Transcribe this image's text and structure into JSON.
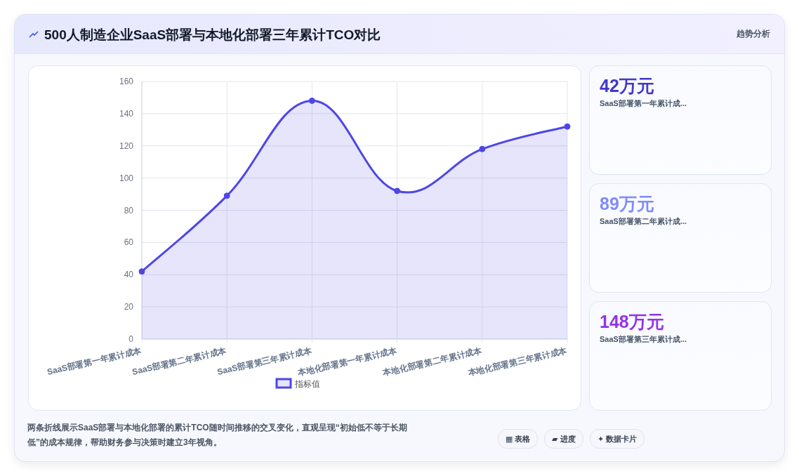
{
  "chart_data": [
    {
      "type": "area",
      "title": "500人制造企业SaaS部署与本地化部署三年累计TCO对比",
      "categories": [
        "SaaS部署第一年累计成本",
        "SaaS部署第二年累计成本",
        "SaaS部署第三年累计成本",
        "本地化部署第一年累计成本",
        "本地化部署第二年累计成本",
        "本地化部署第三年累计成本"
      ],
      "series": [
        {
          "name": "指标值",
          "color": "#4f46e5",
          "values": [
            42,
            89,
            148,
            92,
            118,
            132
          ]
        }
      ],
      "ylim": [
        0,
        160
      ],
      "yticks": [
        0,
        20,
        40,
        60,
        80,
        100,
        120,
        140,
        160
      ],
      "grid": true,
      "legend": "bottom",
      "marker": "circle",
      "line_style": "solid",
      "annotations": [
        "趋势分析",
        "两条折线展示SaaS部署与本地化部署的累计TCO随时间推移的交叉变化，直观呈现“初始低不等于长期低”的成本规律，帮助财务参与决策时建立3年视角。",
        "▦ 表格",
        "▰ 进度",
        "✦ 数据卡片"
      ]
    },
    {
      "type": "other",
      "annotations": [
        "42万元",
        "SaaS部署第一年累计成...",
        "89万元",
        "SaaS部署第二年累计成...",
        "148万元",
        "SaaS部署第三年累计成..."
      ]
    }
  ]
}
